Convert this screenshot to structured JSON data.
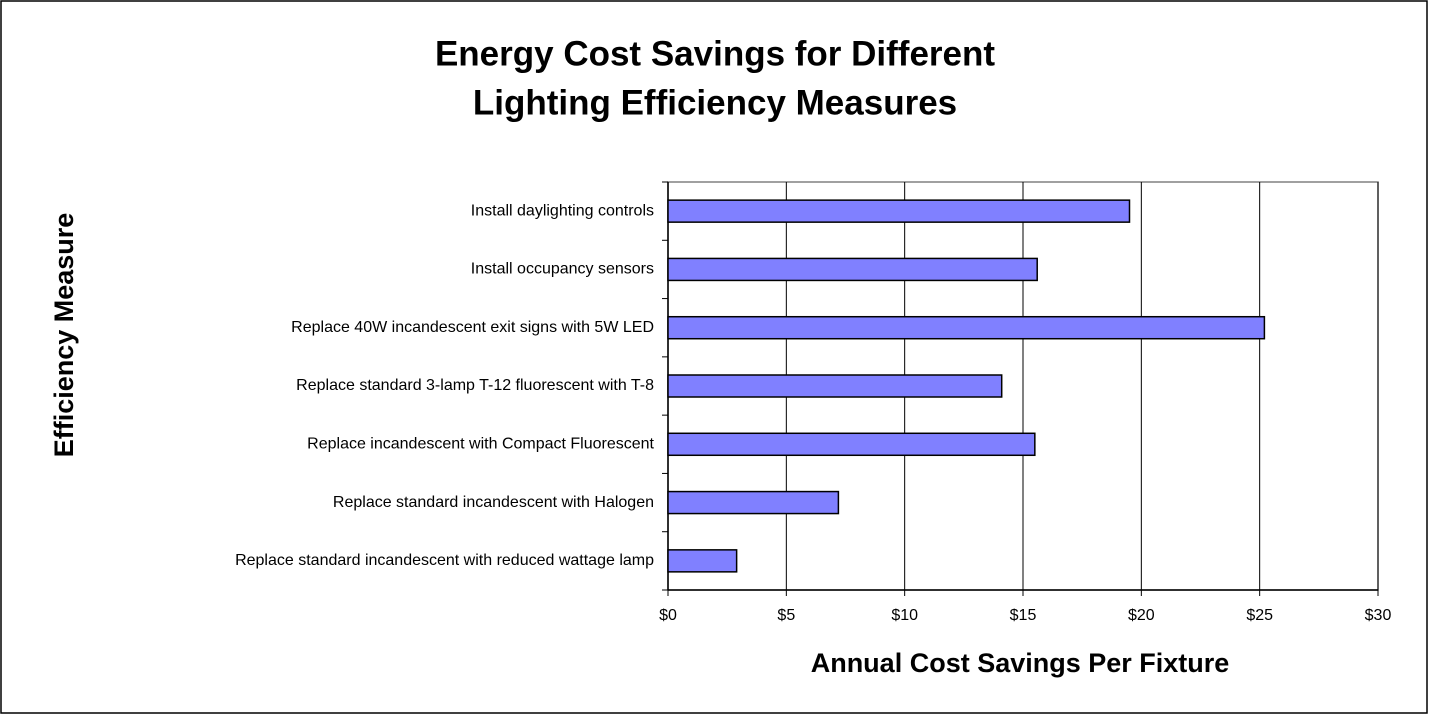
{
  "chart_data": {
    "type": "bar",
    "orientation": "horizontal",
    "title": "Energy Cost Savings for Different Lighting Efficiency Measures",
    "title_lines": [
      "Energy Cost Savings for Different",
      "Lighting Efficiency Measures"
    ],
    "x_label": "Annual Cost Savings Per Fixture",
    "y_label": "Efficiency Measure",
    "categories": [
      "Install daylighting controls",
      "Install occupancy sensors",
      "Replace 40W incandescent exit signs with 5W LED",
      "Replace standard 3-lamp T-12 fluorescent with T-8",
      "Replace incandescent with Compact Fluorescent",
      "Replace standard incandescent  with Halogen",
      "Replace standard incandescent with reduced wattage lamp"
    ],
    "values": [
      19.5,
      15.6,
      25.2,
      14.1,
      15.5,
      7.2,
      2.9
    ],
    "color": "#8080ff",
    "xlim": [
      0,
      30
    ],
    "xticks": [
      {
        "value": 0,
        "label": "$0"
      },
      {
        "value": 5,
        "label": "$5"
      },
      {
        "value": 10,
        "label": "$10"
      },
      {
        "value": 15,
        "label": "$15"
      },
      {
        "value": 20,
        "label": "$20"
      },
      {
        "value": 25,
        "label": "$25"
      },
      {
        "value": 30,
        "label": "$30"
      }
    ],
    "grid": true
  }
}
